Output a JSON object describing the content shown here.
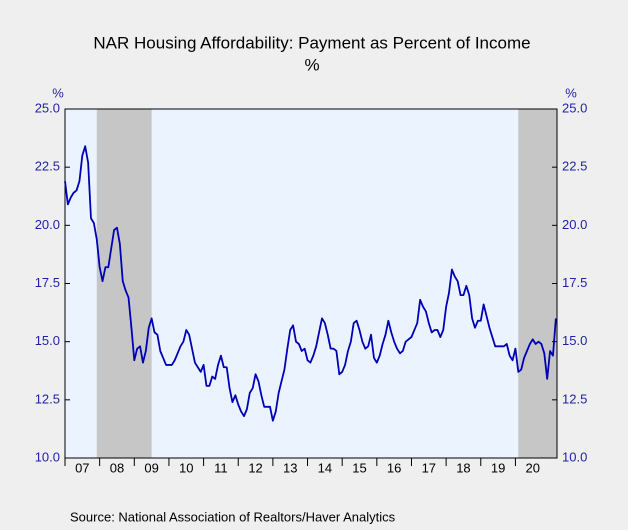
{
  "chart_data": {
    "type": "line",
    "title": "NAR Housing Affordability: Payment as Percent of Income",
    "subtitle": "%",
    "ylabel": "%",
    "y2label": "%",
    "source": "Source:  National Association of Realtors/Haver Analytics",
    "xlim": [
      2007,
      2021.2
    ],
    "xticks": [
      {
        "value": 2007,
        "label": "07"
      },
      {
        "value": 2008,
        "label": "08"
      },
      {
        "value": 2009,
        "label": "09"
      },
      {
        "value": 2010,
        "label": "10"
      },
      {
        "value": 2011,
        "label": "11"
      },
      {
        "value": 2012,
        "label": "12"
      },
      {
        "value": 2013,
        "label": "13"
      },
      {
        "value": 2014,
        "label": "14"
      },
      {
        "value": 2015,
        "label": "15"
      },
      {
        "value": 2016,
        "label": "16"
      },
      {
        "value": 2017,
        "label": "17"
      },
      {
        "value": 2018,
        "label": "18"
      },
      {
        "value": 2019,
        "label": "19"
      },
      {
        "value": 2020,
        "label": "20"
      }
    ],
    "ylim": [
      10,
      25
    ],
    "yticks": [
      {
        "value": 10,
        "label": "10.0"
      },
      {
        "value": 12.5,
        "label": "12.5"
      },
      {
        "value": 15,
        "label": "15.0"
      },
      {
        "value": 17.5,
        "label": "17.5"
      },
      {
        "value": 20,
        "label": "20.0"
      },
      {
        "value": 22.5,
        "label": "22.5"
      },
      {
        "value": 25,
        "label": "25.0"
      }
    ],
    "y2lim": [
      10,
      25
    ],
    "y2ticks": [
      {
        "value": 10,
        "label": "10.0"
      },
      {
        "value": 12.5,
        "label": "12.5"
      },
      {
        "value": 15,
        "label": "15.0"
      },
      {
        "value": 17.5,
        "label": "17.5"
      },
      {
        "value": 20,
        "label": "20.0"
      },
      {
        "value": 22.5,
        "label": "22.5"
      },
      {
        "value": 25,
        "label": "25.0"
      }
    ],
    "shaded": [
      [
        2007.917,
        2009.5
      ],
      [
        2020.083,
        2021.2
      ]
    ],
    "shade_color": "#c6c6c6",
    "x": [
      2007,
      2007.083,
      2007.167,
      2007.25,
      2007.333,
      2007.417,
      2007.5,
      2007.583,
      2007.667,
      2007.75,
      2007.833,
      2007.917,
      2008,
      2008.083,
      2008.167,
      2008.25,
      2008.333,
      2008.417,
      2008.5,
      2008.583,
      2008.667,
      2008.75,
      2008.833,
      2008.917,
      2009,
      2009.083,
      2009.167,
      2009.25,
      2009.333,
      2009.417,
      2009.5,
      2009.583,
      2009.667,
      2009.75,
      2009.833,
      2009.917,
      2010,
      2010.083,
      2010.167,
      2010.25,
      2010.333,
      2010.417,
      2010.5,
      2010.583,
      2010.667,
      2010.75,
      2010.833,
      2010.917,
      2011,
      2011.083,
      2011.167,
      2011.25,
      2011.333,
      2011.417,
      2011.5,
      2011.583,
      2011.667,
      2011.75,
      2011.833,
      2011.917,
      2012,
      2012.083,
      2012.167,
      2012.25,
      2012.333,
      2012.417,
      2012.5,
      2012.583,
      2012.667,
      2012.75,
      2012.833,
      2012.917,
      2013,
      2013.083,
      2013.167,
      2013.25,
      2013.333,
      2013.417,
      2013.5,
      2013.583,
      2013.667,
      2013.75,
      2013.833,
      2013.917,
      2014,
      2014.083,
      2014.167,
      2014.25,
      2014.333,
      2014.417,
      2014.5,
      2014.583,
      2014.667,
      2014.75,
      2014.833,
      2014.917,
      2015,
      2015.083,
      2015.167,
      2015.25,
      2015.333,
      2015.417,
      2015.5,
      2015.583,
      2015.667,
      2015.75,
      2015.833,
      2015.917,
      2016,
      2016.083,
      2016.167,
      2016.25,
      2016.333,
      2016.417,
      2016.5,
      2016.583,
      2016.667,
      2016.75,
      2016.833,
      2016.917,
      2017,
      2017.083,
      2017.167,
      2017.25,
      2017.333,
      2017.417,
      2017.5,
      2017.583,
      2017.667,
      2017.75,
      2017.833,
      2017.917,
      2018,
      2018.083,
      2018.167,
      2018.25,
      2018.333,
      2018.417,
      2018.5,
      2018.583,
      2018.667,
      2018.75,
      2018.833,
      2018.917,
      2019,
      2019.083,
      2019.167,
      2019.25,
      2019.333,
      2019.417,
      2019.5,
      2019.583,
      2019.667,
      2019.75,
      2019.833,
      2019.917,
      2020,
      2020.083,
      2020.167,
      2020.25,
      2020.333,
      2020.417,
      2020.5,
      2020.583,
      2020.667,
      2020.75,
      2020.833,
      2020.917,
      2021,
      2021.083,
      2021.167
    ],
    "series": [
      {
        "name": "Payment as Percent of Income",
        "color": "#0000b4",
        "values": [
          21.9,
          20.9,
          21.2,
          21.4,
          21.5,
          21.9,
          23.0,
          23.4,
          22.7,
          20.3,
          20.1,
          19.4,
          18.2,
          17.6,
          18.2,
          18.2,
          19.0,
          19.8,
          19.9,
          19.2,
          17.6,
          17.2,
          16.9,
          15.6,
          14.2,
          14.7,
          14.8,
          14.1,
          14.6,
          15.6,
          16.0,
          15.4,
          15.3,
          14.6,
          14.3,
          14.0,
          14.0,
          14.0,
          14.2,
          14.5,
          14.8,
          15.0,
          15.5,
          15.3,
          14.7,
          14.1,
          13.9,
          13.7,
          14.0,
          13.1,
          13.1,
          13.5,
          13.4,
          14.0,
          14.4,
          13.9,
          13.9,
          13.0,
          12.4,
          12.7,
          12.3,
          12.0,
          11.8,
          12.1,
          12.8,
          13.0,
          13.6,
          13.3,
          12.7,
          12.2,
          12.2,
          12.2,
          11.6,
          12.0,
          12.8,
          13.3,
          13.8,
          14.7,
          15.5,
          15.7,
          15.0,
          14.9,
          14.6,
          14.7,
          14.2,
          14.1,
          14.4,
          14.8,
          15.4,
          16.0,
          15.8,
          15.3,
          14.7,
          14.7,
          14.6,
          13.6,
          13.7,
          14.0,
          14.6,
          15.0,
          15.8,
          15.9,
          15.5,
          15.0,
          14.7,
          14.8,
          15.3,
          14.3,
          14.1,
          14.4,
          14.9,
          15.3,
          15.9,
          15.4,
          15.0,
          14.7,
          14.5,
          14.6,
          15.0,
          15.1,
          15.2,
          15.5,
          15.8,
          16.8,
          16.5,
          16.3,
          15.8,
          15.4,
          15.5,
          15.5,
          15.2,
          15.5,
          16.5,
          17.1,
          18.1,
          17.8,
          17.6,
          17.0,
          17.0,
          17.4,
          17.0,
          16.0,
          15.6,
          15.9,
          15.9,
          16.6,
          16.1,
          15.6,
          15.2,
          14.8,
          14.8,
          14.8,
          14.8,
          14.9,
          14.4,
          14.2,
          14.7,
          13.7,
          13.8,
          14.3,
          14.6,
          14.9,
          15.1,
          14.9,
          15.0,
          14.9,
          14.5,
          13.4,
          14.6,
          14.4,
          16.0
        ]
      }
    ]
  }
}
